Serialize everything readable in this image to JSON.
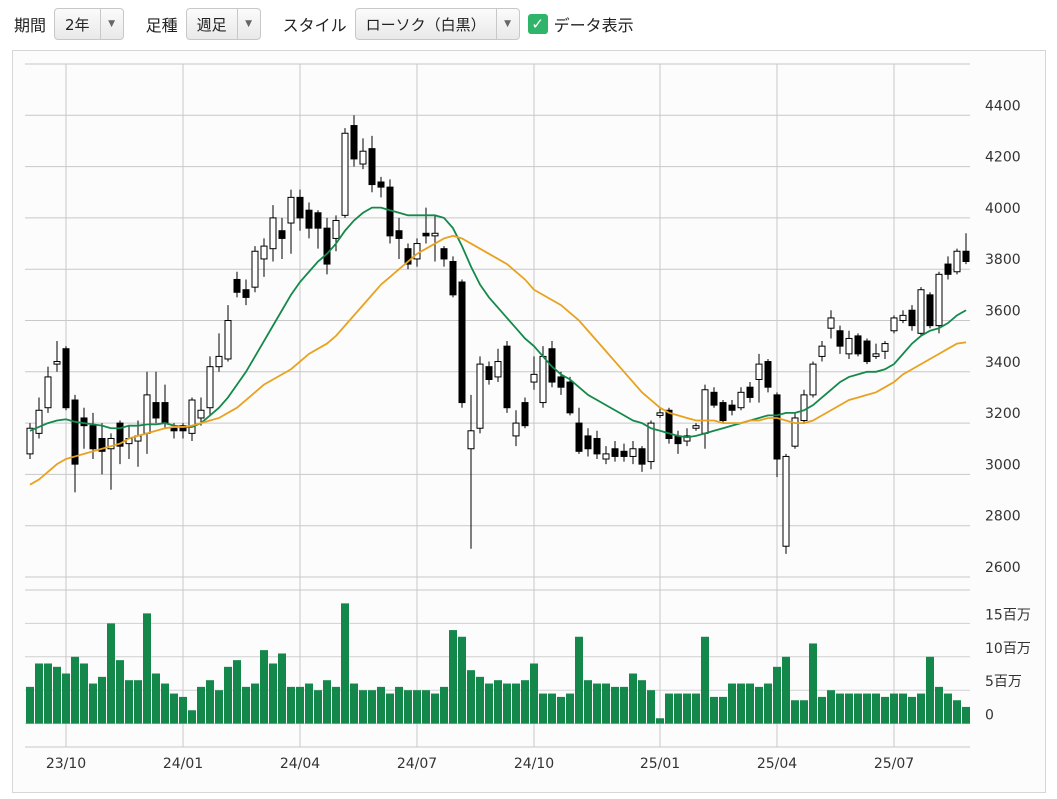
{
  "controls": {
    "period_label": "期間",
    "period": "2年",
    "bar_label": "足種",
    "bar": "週足",
    "style_label": "スタイル",
    "style": "ローソク（白黒）",
    "data_label": "データ表示"
  },
  "chart_data": {
    "type": "candlestick",
    "categories": [
      null,
      null,
      null,
      null,
      "23/10",
      null,
      null,
      null,
      null,
      null,
      null,
      null,
      null,
      null,
      null,
      null,
      null,
      "24/01",
      null,
      null,
      null,
      null,
      null,
      null,
      null,
      null,
      null,
      null,
      null,
      null,
      "24/04",
      null,
      null,
      null,
      null,
      null,
      null,
      null,
      null,
      null,
      null,
      null,
      null,
      "24/07",
      null,
      null,
      null,
      null,
      null,
      null,
      null,
      null,
      null,
      null,
      null,
      null,
      "24/10",
      null,
      null,
      null,
      null,
      null,
      null,
      null,
      null,
      null,
      null,
      null,
      null,
      null,
      "25/01",
      null,
      null,
      null,
      null,
      null,
      null,
      null,
      null,
      null,
      null,
      null,
      null,
      "25/04",
      null,
      null,
      null,
      null,
      null,
      null,
      null,
      null,
      null,
      null,
      null,
      null,
      "25/07",
      null,
      null,
      null,
      null,
      null,
      null,
      null,
      null
    ],
    "open": [
      3080,
      3160,
      3260,
      3430,
      3490,
      3290,
      3220,
      3190,
      3140,
      3100,
      3200,
      3120,
      3130,
      3160,
      3280,
      3280,
      3180,
      3190,
      3160,
      3220,
      3260,
      3420,
      3450,
      3760,
      3720,
      3730,
      3840,
      3880,
      3950,
      3980,
      4080,
      4030,
      4020,
      3960,
      3920,
      4010,
      4360,
      4210,
      4270,
      4140,
      4120,
      3950,
      3880,
      3840,
      3940,
      3930,
      3880,
      3830,
      3750,
      3100,
      3180,
      3420,
      3380,
      3500,
      3150,
      3280,
      3360,
      3280,
      3490,
      3380,
      3360,
      3200,
      3150,
      3140,
      3060,
      3100,
      3090,
      3070,
      3100,
      3050,
      3230,
      3250,
      3150,
      3130,
      3180,
      3160,
      3320,
      3280,
      3270,
      3260,
      3340,
      3370,
      3440,
      3310,
      2720,
      3110,
      3210,
      3310,
      3460,
      3570,
      3560,
      3470,
      3540,
      3520,
      3460,
      3480,
      3560,
      3600,
      3640,
      3550,
      3700,
      3580,
      3820,
      3790,
      3870
    ],
    "high": [
      3200,
      3300,
      3420,
      3520,
      3500,
      3310,
      3260,
      3240,
      3200,
      3160,
      3210,
      3190,
      3210,
      3400,
      3400,
      3350,
      3200,
      3200,
      3300,
      3300,
      3460,
      3550,
      3660,
      3790,
      3760,
      3890,
      3920,
      4050,
      4000,
      4110,
      4110,
      4060,
      4030,
      4000,
      4010,
      4350,
      4400,
      4310,
      4320,
      4160,
      4150,
      4000,
      3900,
      3920,
      4040,
      4010,
      3890,
      3850,
      3760,
      3310,
      3460,
      3440,
      3490,
      3520,
      3250,
      3300,
      3460,
      3500,
      3520,
      3400,
      3380,
      3260,
      3180,
      3170,
      3110,
      3130,
      3120,
      3130,
      3110,
      3210,
      3260,
      3260,
      3170,
      3180,
      3200,
      3350,
      3340,
      3290,
      3290,
      3340,
      3360,
      3470,
      3450,
      3320,
      3080,
      3240,
      3330,
      3440,
      3520,
      3640,
      3580,
      3560,
      3550,
      3530,
      3510,
      3520,
      3620,
      3640,
      3660,
      3730,
      3710,
      3790,
      3850,
      3880,
      3940
    ],
    "low": [
      3060,
      3140,
      3240,
      3400,
      3250,
      2930,
      3100,
      3060,
      3000,
      2940,
      3040,
      3060,
      3030,
      3080,
      3200,
      3180,
      3140,
      3140,
      3130,
      3190,
      3230,
      3400,
      3440,
      3690,
      3660,
      3710,
      3770,
      3830,
      3840,
      3860,
      3950,
      3920,
      3880,
      3780,
      3870,
      4000,
      4200,
      4190,
      4100,
      4080,
      3900,
      3840,
      3800,
      3810,
      3900,
      3830,
      3810,
      3690,
      3260,
      2710,
      3160,
      3350,
      3360,
      3240,
      3110,
      3180,
      3330,
      3260,
      3340,
      3310,
      3230,
      3080,
      3070,
      3060,
      3040,
      3050,
      3050,
      3040,
      3010,
      3020,
      3220,
      3120,
      3080,
      3110,
      3170,
      3100,
      3260,
      3200,
      3230,
      3250,
      3280,
      3280,
      3320,
      2990,
      2690,
      3100,
      3200,
      3300,
      3440,
      3530,
      3470,
      3450,
      3460,
      3430,
      3450,
      3450,
      3550,
      3590,
      3560,
      3540,
      3570,
      3550,
      3760,
      3780,
      3820
    ],
    "close": [
      3180,
      3250,
      3380,
      3440,
      3260,
      3040,
      3190,
      3100,
      3090,
      3140,
      3110,
      3140,
      3150,
      3310,
      3220,
      3200,
      3170,
      3170,
      3290,
      3250,
      3420,
      3460,
      3600,
      3710,
      3690,
      3870,
      3890,
      4000,
      3920,
      4080,
      4000,
      3960,
      3960,
      3820,
      3990,
      4330,
      4230,
      4260,
      4130,
      4120,
      3930,
      3920,
      3820,
      3900,
      3930,
      3940,
      3840,
      3700,
      3280,
      3170,
      3430,
      3370,
      3440,
      3260,
      3200,
      3190,
      3390,
      3460,
      3360,
      3340,
      3240,
      3090,
      3100,
      3080,
      3080,
      3070,
      3070,
      3100,
      3040,
      3200,
      3240,
      3140,
      3120,
      3150,
      3190,
      3330,
      3270,
      3210,
      3250,
      3320,
      3300,
      3430,
      3340,
      3060,
      3070,
      3220,
      3310,
      3430,
      3500,
      3610,
      3500,
      3530,
      3470,
      3440,
      3470,
      3510,
      3610,
      3620,
      3580,
      3720,
      3580,
      3780,
      3780,
      3870,
      3830
    ],
    "rise_color": "#ffffff",
    "fall_color": "#000000",
    "ylim": [
      2600,
      4600
    ],
    "yticks": [
      2600,
      2800,
      3000,
      3200,
      3400,
      3600,
      3800,
      4000,
      4200,
      4400
    ],
    "grid": true,
    "moving_averages": [
      {
        "color": "#14894a",
        "values": [
          3170,
          3185,
          3200,
          3210,
          3215,
          3205,
          3200,
          3195,
          3190,
          3180,
          3180,
          3190,
          3190,
          3195,
          3195,
          3200,
          3190,
          3185,
          3185,
          3200,
          3230,
          3260,
          3300,
          3350,
          3400,
          3460,
          3520,
          3580,
          3640,
          3700,
          3750,
          3790,
          3830,
          3860,
          3900,
          3950,
          3990,
          4020,
          4040,
          4040,
          4030,
          4020,
          4010,
          4010,
          4010,
          4010,
          4000,
          3960,
          3890,
          3810,
          3740,
          3690,
          3650,
          3610,
          3570,
          3530,
          3500,
          3460,
          3420,
          3390,
          3370,
          3340,
          3310,
          3290,
          3270,
          3250,
          3230,
          3210,
          3200,
          3180,
          3170,
          3160,
          3150,
          3145,
          3150,
          3160,
          3170,
          3180,
          3190,
          3200,
          3210,
          3220,
          3230,
          3230,
          3240,
          3240,
          3250,
          3270,
          3300,
          3330,
          3360,
          3380,
          3390,
          3400,
          3400,
          3410,
          3430,
          3470,
          3510,
          3540,
          3560,
          3570,
          3590,
          3620,
          3640
        ]
      },
      {
        "color": "#e9a21f",
        "values": [
          2960,
          2980,
          3010,
          3040,
          3060,
          3070,
          3080,
          3090,
          3100,
          3110,
          3120,
          3140,
          3150,
          3160,
          3170,
          3180,
          3185,
          3185,
          3190,
          3200,
          3210,
          3220,
          3240,
          3260,
          3290,
          3320,
          3350,
          3370,
          3390,
          3410,
          3440,
          3470,
          3490,
          3510,
          3540,
          3580,
          3620,
          3660,
          3700,
          3740,
          3770,
          3800,
          3830,
          3860,
          3880,
          3900,
          3920,
          3930,
          3920,
          3900,
          3880,
          3860,
          3840,
          3820,
          3790,
          3760,
          3720,
          3700,
          3680,
          3660,
          3630,
          3600,
          3560,
          3520,
          3480,
          3440,
          3400,
          3360,
          3320,
          3290,
          3260,
          3240,
          3230,
          3220,
          3210,
          3210,
          3210,
          3200,
          3200,
          3200,
          3210,
          3210,
          3220,
          3220,
          3210,
          3200,
          3200,
          3210,
          3230,
          3250,
          3270,
          3290,
          3300,
          3310,
          3320,
          3340,
          3360,
          3390,
          3410,
          3430,
          3450,
          3470,
          3490,
          3510,
          3515
        ]
      }
    ],
    "volume": {
      "color": "#13884a",
      "ylim": [
        -3.5,
        20
      ],
      "yticks": [
        0,
        {
          "value": 5,
          "label": "5百万"
        },
        {
          "value": 10,
          "label": "10百万"
        },
        {
          "value": 15,
          "label": "15百万"
        }
      ],
      "values": [
        5.5,
        9,
        9,
        8.5,
        7.5,
        10,
        9,
        6,
        7,
        15,
        9.5,
        6.5,
        6.5,
        16.5,
        7.5,
        6,
        4.5,
        4,
        2,
        5.5,
        6.5,
        5,
        8.5,
        9.5,
        5.5,
        6,
        11,
        9,
        10.5,
        5.5,
        5.5,
        6,
        5,
        6.5,
        5.5,
        18,
        6,
        5,
        5,
        5.5,
        4.5,
        5.5,
        5,
        5,
        5,
        4.5,
        5.5,
        14,
        13,
        8,
        7,
        6,
        6.5,
        6,
        6,
        6.5,
        9,
        4.5,
        4.5,
        4,
        4.5,
        13,
        6.5,
        6,
        6,
        5.5,
        5.5,
        7.5,
        6.5,
        5,
        0.8,
        4.5,
        4.5,
        4.5,
        4.5,
        13,
        4,
        4,
        6,
        6,
        6,
        5.5,
        6,
        8.5,
        10,
        3.5,
        3.5,
        12,
        4,
        5,
        4.5,
        4.5,
        4.5,
        4.5,
        4.5,
        4,
        4.5,
        4.5,
        4,
        4.5,
        10,
        5.5,
        4.5,
        3.5,
        2.5
      ]
    }
  }
}
